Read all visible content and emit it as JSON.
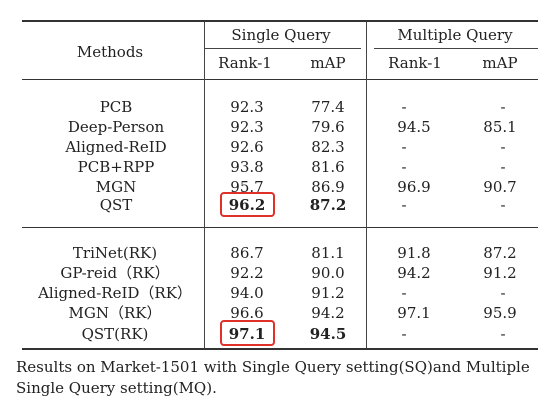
{
  "header": {
    "methods": "Methods",
    "single_query": "Single Query",
    "multiple_query": "Multiple Query",
    "sq_rank1": "Rank-1",
    "sq_map": "mAP",
    "mq_rank1": "Rank-1",
    "mq_map": "mAP"
  },
  "group1": [
    {
      "method": "PCB",
      "sq_rank1": "92.3",
      "sq_map": "77.4",
      "mq_rank1": "-",
      "mq_map": "-"
    },
    {
      "method": "Deep-Person",
      "sq_rank1": "92.3",
      "sq_map": "79.6",
      "mq_rank1": "94.5",
      "mq_map": "85.1"
    },
    {
      "method": "Aligned-ReID",
      "sq_rank1": "92.6",
      "sq_map": "82.3",
      "mq_rank1": "-",
      "mq_map": "-"
    },
    {
      "method": "PCB+RPP",
      "sq_rank1": "93.8",
      "sq_map": "81.6",
      "mq_rank1": "-",
      "mq_map": "-"
    },
    {
      "method": "MGN",
      "sq_rank1": "95.7",
      "sq_map": "86.9",
      "mq_rank1": "96.9",
      "mq_map": "90.7"
    },
    {
      "method": "QST",
      "sq_rank1": "96.2",
      "sq_map": "87.2",
      "mq_rank1": "-",
      "mq_map": "-"
    }
  ],
  "group2": [
    {
      "method": "TriNet(RK)",
      "sq_rank1": "86.7",
      "sq_map": "81.1",
      "mq_rank1": "91.8",
      "mq_map": "87.2"
    },
    {
      "method": "GP-reid（RK）",
      "sq_rank1": "92.2",
      "sq_map": "90.0",
      "mq_rank1": "94.2",
      "mq_map": "91.2"
    },
    {
      "method": "Aligned-ReID（RK）",
      "sq_rank1": "94.0",
      "sq_map": "91.2",
      "mq_rank1": "-",
      "mq_map": "-"
    },
    {
      "method": "MGN（RK）",
      "sq_rank1": "96.6",
      "sq_map": "94.2",
      "mq_rank1": "97.1",
      "mq_map": "95.9"
    },
    {
      "method": "QST(RK)",
      "sq_rank1": "97.1",
      "sq_map": "94.5",
      "mq_rank1": "-",
      "mq_map": "-"
    }
  ],
  "highlight_color": "#e0302a",
  "caption": "Results on Market-1501 with Single Query setting(SQ)and Multiple Single Query setting(MQ)."
}
